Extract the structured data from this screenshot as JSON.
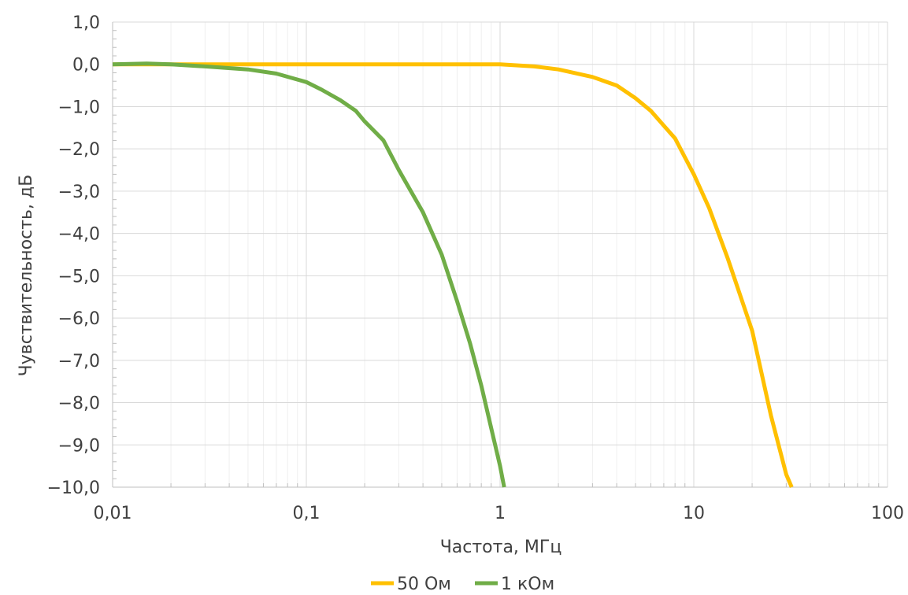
{
  "chart_data": {
    "type": "line",
    "xlabel": "Частота, МГц",
    "ylabel": "Чувствительность, дБ",
    "xscale": "log",
    "xlim": [
      0.01,
      100
    ],
    "ylim": [
      -10,
      1
    ],
    "grid": true,
    "legend_position": "bottom",
    "x_tick_labels": [
      "0,01",
      "0,1",
      "1",
      "10",
      "100"
    ],
    "y_tick_labels": [
      "1,0",
      "0,0",
      "−1,0",
      "−2,0",
      "−3,0",
      "−4,0",
      "−5,0",
      "−6,0",
      "−7,0",
      "−8,0",
      "−9,0",
      "−10,0"
    ],
    "series": [
      {
        "name": "50 Ом",
        "color": "#FFC000",
        "x": [
          0.01,
          0.02,
          0.05,
          0.1,
          0.2,
          0.5,
          1.0,
          1.5,
          2.0,
          3.0,
          4.0,
          5.0,
          6.0,
          7.0,
          8.0,
          9.0,
          10.0,
          12.0,
          15.0,
          20.0,
          25.0,
          30.0,
          32.0
        ],
        "y": [
          0.0,
          0.0,
          0.0,
          0.0,
          0.0,
          0.0,
          0.0,
          -0.05,
          -0.12,
          -0.3,
          -0.5,
          -0.8,
          -1.1,
          -1.45,
          -1.75,
          -2.2,
          -2.6,
          -3.4,
          -4.6,
          -6.3,
          -8.3,
          -9.7,
          -10.0
        ]
      },
      {
        "name": "1 кОм",
        "color": "#70AD47",
        "x": [
          0.01,
          0.015,
          0.02,
          0.03,
          0.05,
          0.07,
          0.1,
          0.12,
          0.15,
          0.18,
          0.2,
          0.25,
          0.3,
          0.4,
          0.5,
          0.6,
          0.7,
          0.8,
          0.9,
          1.0,
          1.05
        ],
        "y": [
          0.0,
          0.02,
          0.0,
          -0.05,
          -0.12,
          -0.22,
          -0.42,
          -0.6,
          -0.85,
          -1.1,
          -1.35,
          -1.8,
          -2.5,
          -3.5,
          -4.5,
          -5.6,
          -6.6,
          -7.6,
          -8.6,
          -9.5,
          -10.0
        ]
      }
    ]
  }
}
